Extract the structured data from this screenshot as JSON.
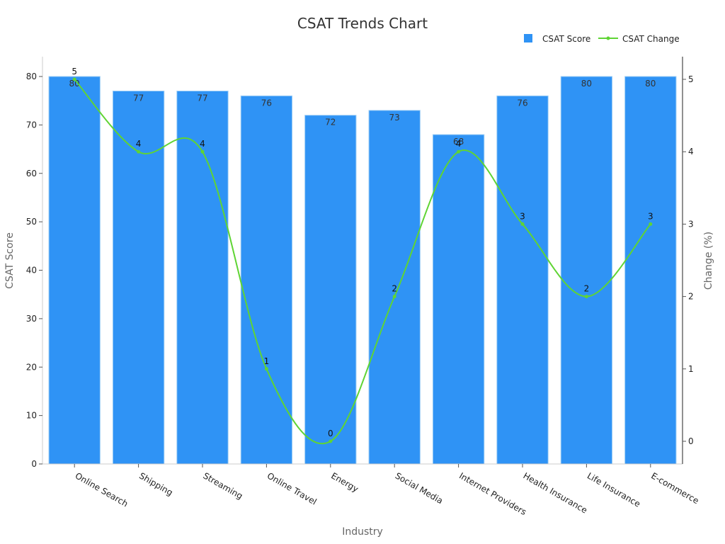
{
  "chart_data": {
    "type": "bar",
    "title": "CSAT Trends Chart",
    "xlabel": "Industry",
    "ylabel": "CSAT Score",
    "y2label": "Change (%)",
    "categories": [
      "Online Search",
      "Shipping",
      "Streaming",
      "Online Travel",
      "Energy",
      "Social Media",
      "Internet Providers",
      "Health Insurance",
      "Life Insurance",
      "E-commerce"
    ],
    "series": [
      {
        "name": "CSAT Score",
        "type": "bar",
        "axis": "left",
        "color": "#2f93f5",
        "values": [
          80,
          77,
          77,
          76,
          72,
          73,
          68,
          76,
          80,
          80
        ]
      },
      {
        "name": "CSAT Change",
        "type": "line",
        "axis": "right",
        "color": "#5fd434",
        "values": [
          5,
          4,
          4,
          1,
          0,
          2,
          4,
          3,
          2,
          3
        ]
      }
    ],
    "ylim": [
      0,
      80
    ],
    "y_ticks": [
      0,
      10,
      20,
      30,
      40,
      50,
      60,
      70,
      80
    ],
    "y2lim": [
      0,
      5
    ],
    "y2_ticks": [
      0,
      1,
      2,
      3,
      4,
      5
    ],
    "grid": false,
    "legend_position": "top-right",
    "line_smooth": true
  }
}
